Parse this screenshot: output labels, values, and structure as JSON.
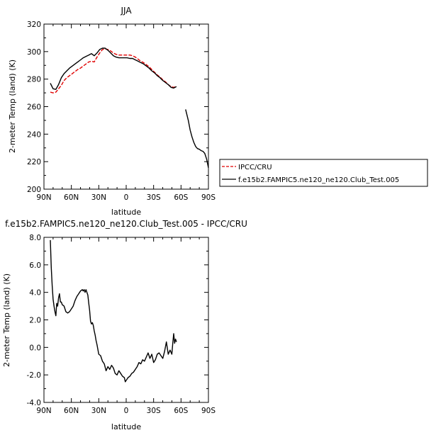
{
  "chart_data": [
    {
      "type": "line",
      "title": "JJA",
      "xlabel": "latitude",
      "ylabel": "2-meter Temp (land) (K)",
      "xlim": [
        90,
        -90
      ],
      "ylim": [
        200,
        320
      ],
      "xticks": [
        90,
        60,
        30,
        0,
        -30,
        -60,
        -90
      ],
      "xtick_labels": [
        "90N",
        "60N",
        "30N",
        "0",
        "30S",
        "60S",
        "90S"
      ],
      "yticks": [
        200,
        220,
        240,
        260,
        280,
        300,
        320
      ],
      "ytick_labels": [
        "200",
        "220",
        "240",
        "260",
        "280",
        "300",
        "320"
      ],
      "grid": false,
      "legend_position": "right",
      "series": [
        {
          "name": "IPCC/CRU",
          "color": "#e00000",
          "dash": "dashed",
          "x": [
            83,
            80,
            77,
            74,
            71,
            68,
            65,
            62,
            59,
            56,
            53,
            50,
            47,
            44,
            41,
            38,
            35,
            32,
            29,
            26,
            23,
            20,
            17,
            14,
            11,
            8,
            5,
            2,
            -1,
            -4,
            -7,
            -10,
            -13,
            -16,
            -19,
            -22,
            -25,
            -28,
            -31,
            -34,
            -37,
            -40,
            -43,
            -46,
            -49,
            -52,
            -55
          ],
          "y": [
            270.5,
            270,
            270.5,
            273,
            275.5,
            279,
            281,
            282.5,
            284,
            285.5,
            287,
            288,
            289.5,
            291,
            292.5,
            293,
            292.5,
            296,
            299,
            301.5,
            302,
            301.5,
            300.5,
            299,
            298,
            297.5,
            297.5,
            297.5,
            297.5,
            297.5,
            297,
            296,
            294.5,
            293,
            292,
            290.5,
            289,
            287,
            285,
            283,
            281.5,
            279.5,
            278,
            276,
            274.5,
            274,
            274.5
          ]
        },
        {
          "name": "f.e15b2.FAMPIC5.ne120_ne120.Club_Test.005",
          "color": "#000000",
          "dash": "solid",
          "segments": [
            {
              "x": [
                83,
                80,
                77,
                74,
                71,
                68,
                65,
                62,
                59,
                56,
                53,
                50,
                47,
                44,
                41,
                38,
                35,
                32,
                29,
                26,
                23,
                20,
                17,
                14,
                11,
                8,
                5,
                2,
                -1,
                -4,
                -7,
                -10,
                -13,
                -16,
                -19,
                -22,
                -25,
                -28,
                -31,
                -34,
                -37,
                -40,
                -43,
                -46,
                -49,
                -52,
                -55
              ],
              "y": [
                277,
                273,
                272.5,
                276,
                281,
                284,
                286,
                288,
                289.5,
                291,
                292.5,
                294,
                295.5,
                296.5,
                297.5,
                298.5,
                297,
                299,
                301.5,
                302.5,
                302.5,
                301,
                299,
                297,
                296,
                295.5,
                295.5,
                295.5,
                295.5,
                295,
                295,
                294,
                293,
                292,
                291,
                289.5,
                288,
                286,
                284.5,
                282.5,
                281,
                279,
                277.5,
                276,
                274,
                273.5,
                274.5
              ]
            },
            {
              "x": [
                -65,
                -68,
                -70,
                -72,
                -74,
                -76,
                -78,
                -80,
                -82,
                -84,
                -86,
                -88,
                -90
              ],
              "y": [
                258,
                250,
                243,
                238,
                234,
                231,
                229.5,
                229,
                228,
                227.5,
                226,
                222,
                215.5
              ]
            }
          ]
        }
      ]
    },
    {
      "type": "line",
      "title": "f.e15b2.FAMPIC5.ne120_ne120.Club_Test.005 - IPCC/CRU",
      "xlabel": "latitude",
      "ylabel": "2-meter Temp (land) (K)",
      "xlim": [
        90,
        -90
      ],
      "ylim": [
        -4,
        8
      ],
      "xticks": [
        90,
        60,
        30,
        0,
        -30,
        -60,
        -90
      ],
      "xtick_labels": [
        "90N",
        "60N",
        "30N",
        "0",
        "30S",
        "60S",
        "90S"
      ],
      "yticks": [
        -4,
        -2,
        0,
        2,
        4,
        6,
        8
      ],
      "ytick_labels": [
        "-4.0",
        "-2.0",
        "0.0",
        "2.0",
        "4.0",
        "6.0",
        "8.0"
      ],
      "grid": false,
      "series": [
        {
          "name": "",
          "color": "#000000",
          "dash": "solid",
          "x": [
            83,
            82,
            81,
            80,
            79,
            78,
            77,
            76,
            75,
            74,
            73,
            72,
            71,
            70,
            68,
            66,
            64,
            62,
            60,
            58,
            56,
            54,
            52,
            50,
            48,
            47,
            46,
            45,
            44,
            43,
            42,
            41,
            40,
            39,
            38,
            37,
            36,
            35,
            34,
            33,
            32,
            30,
            28,
            26,
            24,
            22,
            20,
            18,
            16,
            14,
            12,
            10,
            8,
            6,
            4,
            2,
            1,
            0,
            -1,
            -2,
            -4,
            -6,
            -8,
            -10,
            -12,
            -14,
            -16,
            -18,
            -20,
            -22,
            -24,
            -26,
            -28,
            -30,
            -32,
            -34,
            -36,
            -38,
            -40,
            -42,
            -44,
            -46,
            -48,
            -50,
            -51,
            -52,
            -53,
            -54,
            -55
          ],
          "y": [
            7.8,
            5.8,
            4.5,
            3.5,
            3.0,
            2.6,
            2.3,
            3.2,
            3.0,
            3.6,
            3.9,
            3.3,
            3.3,
            3.1,
            3.0,
            2.6,
            2.5,
            2.6,
            2.8,
            3.0,
            3.4,
            3.7,
            3.9,
            4.1,
            4.2,
            4.1,
            4.2,
            4.0,
            4.2,
            4.0,
            3.8,
            3.2,
            2.7,
            1.9,
            1.7,
            1.8,
            1.6,
            1.2,
            0.9,
            0.5,
            0.2,
            -0.5,
            -0.6,
            -1.0,
            -1.2,
            -1.7,
            -1.4,
            -1.6,
            -1.3,
            -1.5,
            -1.9,
            -2.0,
            -1.7,
            -1.9,
            -2.1,
            -2.2,
            -2.5,
            -2.4,
            -2.3,
            -2.2,
            -2.1,
            -1.9,
            -1.8,
            -1.6,
            -1.4,
            -1.1,
            -1.2,
            -0.9,
            -1.0,
            -0.7,
            -0.4,
            -0.8,
            -0.5,
            -1.1,
            -0.9,
            -0.5,
            -0.4,
            -0.6,
            -0.8,
            -0.3,
            0.4,
            -0.5,
            -0.2,
            -0.5,
            0.3,
            1.0,
            0.3,
            0.6,
            0.4
          ]
        }
      ]
    }
  ]
}
